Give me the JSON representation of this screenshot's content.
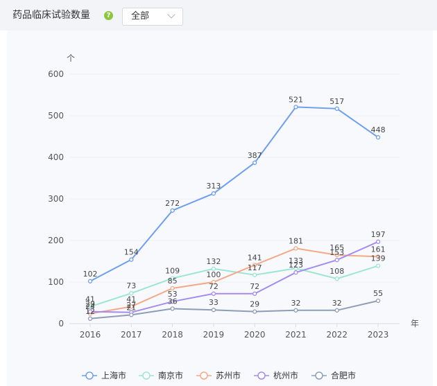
{
  "header": {
    "title": "药品临床试验数量",
    "help_icon": "help-icon",
    "filter_value": "全部",
    "filter_icon": "chevron-down-icon"
  },
  "chart_data": {
    "type": "line",
    "x": [
      "2016",
      "2017",
      "2018",
      "2019",
      "2020",
      "2021",
      "2022",
      "2023"
    ],
    "yunit": "个",
    "xunit": "年",
    "ylim": [
      0,
      600
    ],
    "yticks": [
      0,
      100,
      200,
      300,
      400,
      500,
      600
    ],
    "grid": true,
    "legend_position": "bottom",
    "series": [
      {
        "name": "上海市",
        "color": "#6d9ef0",
        "values": [
          102,
          154,
          272,
          313,
          387,
          521,
          517,
          448
        ]
      },
      {
        "name": "南京市",
        "color": "#9be6d2",
        "values": [
          41,
          73,
          109,
          132,
          117,
          133,
          108,
          139
        ]
      },
      {
        "name": "苏州市",
        "color": "#f5a888",
        "values": [
          24,
          41,
          85,
          100,
          141,
          181,
          165,
          161
        ]
      },
      {
        "name": "杭州市",
        "color": "#a48bf0",
        "values": [
          29,
          27,
          53,
          72,
          72,
          123,
          153,
          197
        ]
      },
      {
        "name": "合肥市",
        "color": "#8e9db5",
        "values": [
          12,
          21,
          36,
          33,
          29,
          32,
          32,
          55
        ]
      }
    ]
  }
}
